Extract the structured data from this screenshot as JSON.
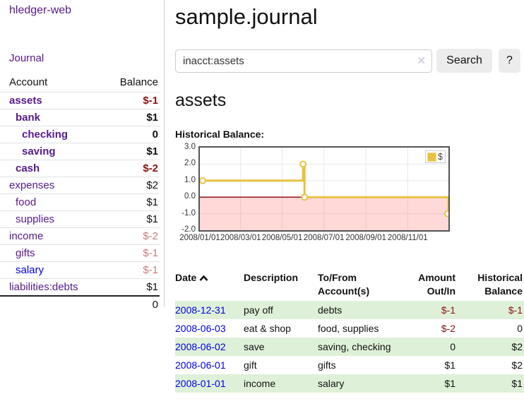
{
  "app": {
    "brand": "hledger-web",
    "nav_journal": "Journal"
  },
  "sidebar": {
    "account_header": "Account",
    "balance_header": "Balance",
    "accounts": [
      {
        "name": "assets",
        "balance": "$-1",
        "depth": 1,
        "bold": true,
        "link": "purple",
        "bal": "neg-dark"
      },
      {
        "name": "bank",
        "balance": "$1",
        "depth": 2,
        "bold": true,
        "link": "purple",
        "bal": "pos"
      },
      {
        "name": "checking",
        "balance": "0",
        "depth": 3,
        "bold": true,
        "link": "purple",
        "bal": "pos"
      },
      {
        "name": "saving",
        "balance": "$1",
        "depth": 3,
        "bold": true,
        "link": "purple",
        "bal": "pos"
      },
      {
        "name": "cash",
        "balance": "$-2",
        "depth": 2,
        "bold": true,
        "link": "purple",
        "bal": "neg-dark"
      },
      {
        "name": "expenses",
        "balance": "$2",
        "depth": 1,
        "bold": false,
        "link": "purple",
        "bal": "pos"
      },
      {
        "name": "food",
        "balance": "$1",
        "depth": 2,
        "bold": false,
        "link": "purple",
        "bal": "pos"
      },
      {
        "name": "supplies",
        "balance": "$1",
        "depth": 2,
        "bold": false,
        "link": "purple",
        "bal": "pos"
      },
      {
        "name": "income",
        "balance": "$-2",
        "depth": 1,
        "bold": false,
        "link": "purple",
        "bal": "neg-light"
      },
      {
        "name": "gifts",
        "balance": "$-1",
        "depth": 2,
        "bold": false,
        "link": "purple",
        "bal": "neg-light"
      },
      {
        "name": "salary",
        "balance": "$-1",
        "depth": 2,
        "bold": false,
        "link": "blue",
        "bal": "neg-light"
      },
      {
        "name": "liabilities:debts",
        "balance": "$1",
        "depth": 1,
        "bold": false,
        "link": "purple",
        "bal": "pos"
      }
    ],
    "total": "0"
  },
  "header": {
    "title": "sample.journal"
  },
  "search": {
    "value": "inacct:assets",
    "clear_icon": "✕",
    "button": "Search",
    "help_button": "?"
  },
  "account_page": {
    "heading": "assets",
    "chart_label": "Historical Balance:"
  },
  "chart_data": {
    "type": "line",
    "style": "step-with-markers",
    "title": "Historical Balance",
    "legend": [
      {
        "name": "$",
        "color": "#e8c240"
      }
    ],
    "legend_position": "top-right",
    "ylim": [
      -2.0,
      3.0
    ],
    "y_ticks": [
      "3.0",
      "2.0",
      "1.0",
      "0.0",
      "-1.0",
      "-2.0"
    ],
    "x_ticks": [
      {
        "label": "2008/01/01",
        "xf": 0.0
      },
      {
        "label": "2008/03/01",
        "xf": 0.164
      },
      {
        "label": "2008/05/01",
        "xf": 0.331
      },
      {
        "label": "2008/07/01",
        "xf": 0.499
      },
      {
        "label": "2008/09/01",
        "xf": 0.668
      },
      {
        "label": "2008/11/01",
        "xf": 0.836
      }
    ],
    "points": [
      {
        "date": "2008-01-01",
        "value": 1
      },
      {
        "date": "2008-06-01",
        "value": 2
      },
      {
        "date": "2008-06-02",
        "value": 2
      },
      {
        "date": "2008-06-03",
        "value": 0
      },
      {
        "date": "2008-12-31",
        "value": -1
      }
    ],
    "vertices": [
      {
        "xf": 0.0,
        "v": 1
      },
      {
        "xf": 0.415,
        "v": 1
      },
      {
        "xf": 0.415,
        "v": 2
      },
      {
        "xf": 0.421,
        "v": 2
      },
      {
        "xf": 0.421,
        "v": 0
      },
      {
        "xf": 1.0,
        "v": 0
      },
      {
        "xf": 1.0,
        "v": -1
      }
    ],
    "markers": [
      {
        "xf": 0.0,
        "v": 1
      },
      {
        "xf": 0.415,
        "v": 2
      },
      {
        "xf": 0.421,
        "v": 0
      },
      {
        "xf": 1.0,
        "v": -1
      }
    ],
    "grid": true,
    "negative_region_fill": "rgba(255,110,110,0.27)",
    "zero_line_color": "#8b0000",
    "line_color": "#e8c240"
  },
  "transactions": {
    "columns": {
      "date": "Date",
      "description": "Description",
      "accounts": "To/From Account(s)",
      "amount": "Amount Out/In",
      "balance": "Historical Balance"
    },
    "rows": [
      {
        "date": "2008-12-31",
        "description": "pay off",
        "accounts": "debts",
        "amount": "$-1",
        "amount_neg": true,
        "balance": "$-1",
        "balance_neg": true
      },
      {
        "date": "2008-06-03",
        "description": "eat & shop",
        "accounts": "food, supplies",
        "amount": "$-2",
        "amount_neg": true,
        "balance": "0",
        "balance_neg": false
      },
      {
        "date": "2008-06-02",
        "description": "save",
        "accounts": "saving, checking",
        "amount": "0",
        "amount_neg": false,
        "balance": "$2",
        "balance_neg": false
      },
      {
        "date": "2008-06-01",
        "description": "gift",
        "accounts": "gifts",
        "amount": "$1",
        "amount_neg": false,
        "balance": "$2",
        "balance_neg": false
      },
      {
        "date": "2008-01-01",
        "description": "income",
        "accounts": "salary",
        "amount": "$1",
        "amount_neg": false,
        "balance": "$1",
        "balance_neg": false
      }
    ]
  },
  "colors": {
    "link_purple": "#551A8B",
    "link_blue": "#0000E0",
    "negative_dark": "#8b1212",
    "negative_light": "#c87e7e",
    "row_stripe_green": "#dff0d8",
    "chart_line": "#e8c240",
    "chart_zero_line": "#8b0000",
    "chart_border": "#545454",
    "button_bg": "#ececec"
  }
}
